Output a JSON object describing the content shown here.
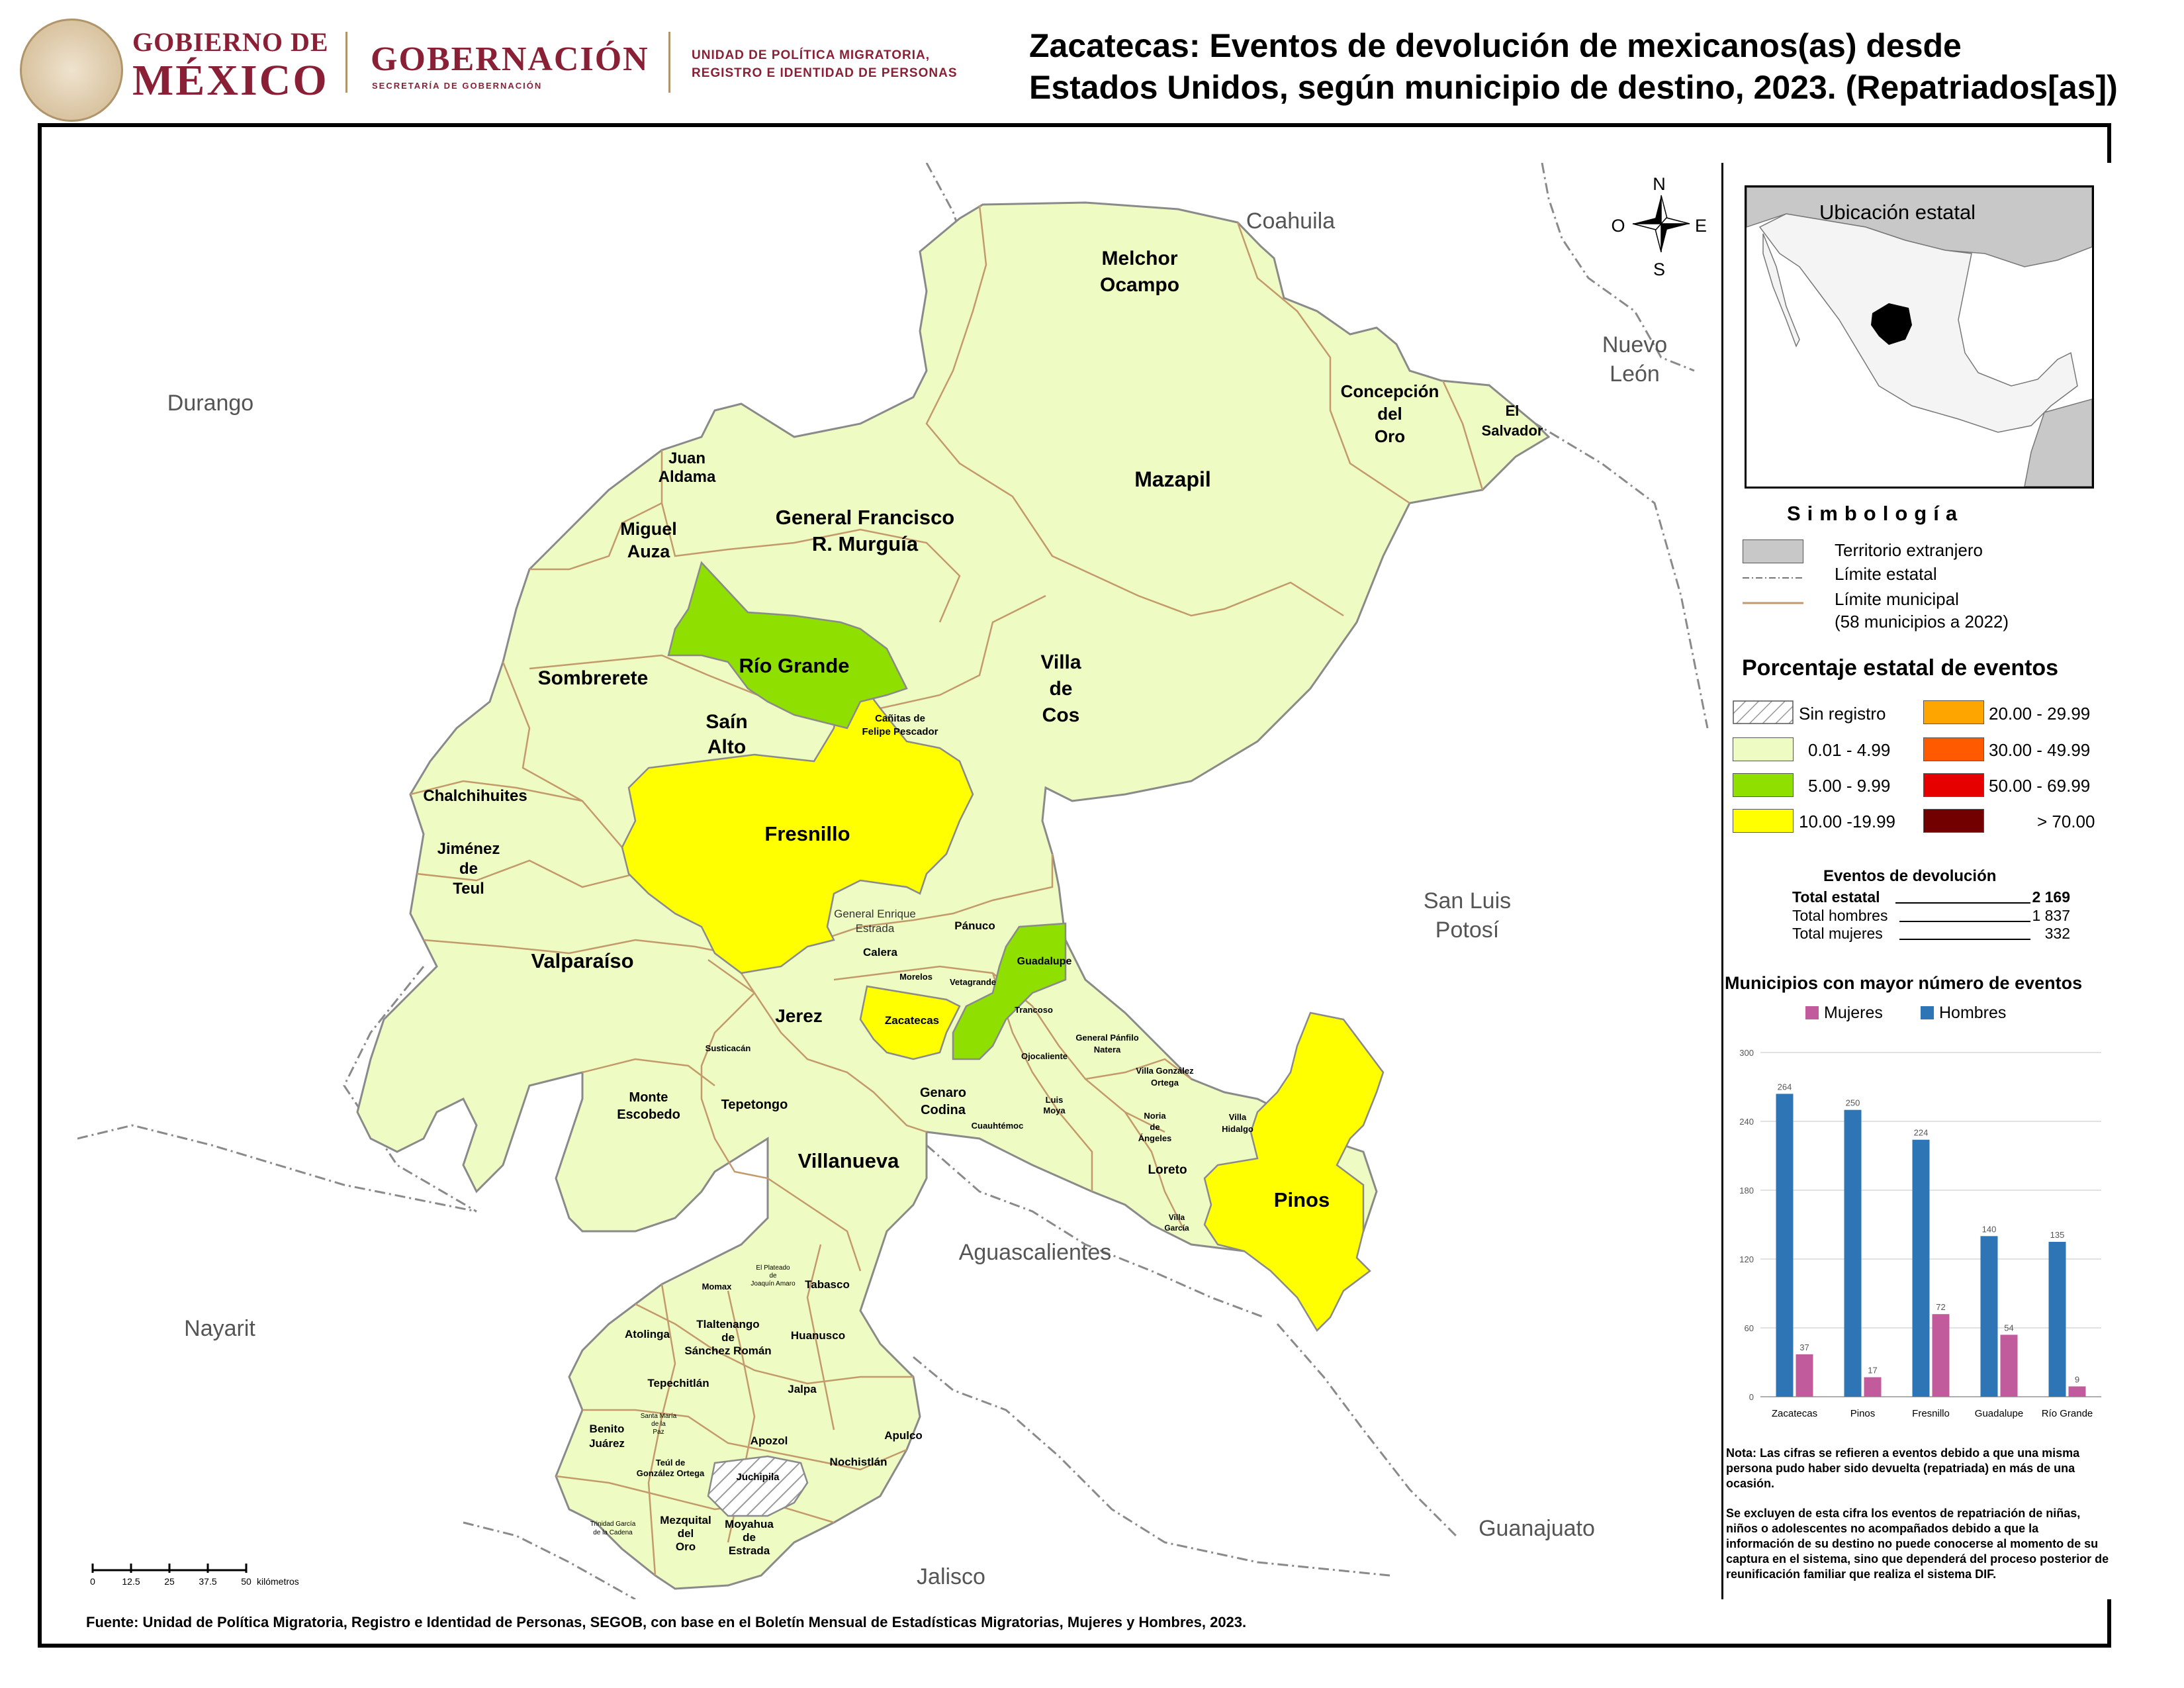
{
  "header": {
    "gob_line1": "GOBIERNO DE",
    "gob_line2": "MÉXICO",
    "gobernacion": "GOBERNACIÓN",
    "secretaria": "SECRETARÍA DE GOBERNACIÓN",
    "unidad_line1": "UNIDAD DE POLÍTICA MIGRATORIA,",
    "unidad_line2": "REGISTRO E IDENTIDAD DE PERSONAS",
    "title_line1": "Zacatecas: Eventos de devolución de mexicanos(as) desde",
    "title_line2": "Estados Unidos, según municipio de destino, 2023. (Repatriados[as])"
  },
  "compass": {
    "n": "N",
    "s": "S",
    "e": "E",
    "o": "O"
  },
  "states": {
    "coahuila": "Coahuila",
    "durango": "Durango",
    "nuevo_leon_1": "Nuevo",
    "nuevo_leon_2": "León",
    "san_luis_1": "San Luis",
    "san_luis_2": "Potosí",
    "nayarit": "Nayarit",
    "aguascalientes": "Aguascalientes",
    "jalisco": "Jalisco",
    "guanajuato": "Guanajuato"
  },
  "municipios": {
    "melchor_1": "Melchor",
    "melchor_2": "Ocampo",
    "concepcion_1": "Concepción",
    "concepcion_2": "del",
    "concepcion_3": "Oro",
    "el_salvador_1": "El",
    "el_salvador_2": "Salvador",
    "mazapil": "Mazapil",
    "juan_aldama_1": "Juan",
    "juan_aldama_2": "Aldama",
    "miguel_auza_1": "Miguel",
    "miguel_auza_2": "Auza",
    "murguia_1": "General Francisco",
    "murguia_2": "R. Murguía",
    "rio_grande": "Río Grande",
    "sombrerete": "Sombrerete",
    "sain_alto_1": "Saín",
    "sain_alto_2": "Alto",
    "canitas_1": "Cañitas de",
    "canitas_2": "Felipe Pescador",
    "villa_de_cos_1": "Villa",
    "villa_de_cos_2": "de",
    "villa_de_cos_3": "Cos",
    "chalchihuites": "Chalchihuites",
    "jimenez_1": "Jiménez",
    "jimenez_2": "de",
    "jimenez_3": "Teul",
    "fresnillo": "Fresnillo",
    "valparaiso": "Valparaíso",
    "enrique_estrada_1": "General Enrique",
    "enrique_estrada_2": "Estrada",
    "panuco": "Pánuco",
    "calera": "Calera",
    "guadalupe": "Guadalupe",
    "morelos": "Morelos",
    "vetagrande": "Vetagrande",
    "zacatecas": "Zacatecas",
    "trancoso": "Trancoso",
    "jerez": "Jerez",
    "susticacan": "Susticacán",
    "panfilo_1": "General Pánfilo",
    "panfilo_2": "Natera",
    "ojocaliente": "Ojocaliente",
    "villa_gonzalez_1": "Villa González",
    "villa_gonzalez_2": "Ortega",
    "monte_escobedo_1": "Monte",
    "monte_escobedo_2": "Escobedo",
    "tepetongo": "Tepetongo",
    "genaro_codina_1": "Genaro",
    "genaro_codina_2": "Codina",
    "luis_moya_1": "Luis",
    "luis_moya_2": "Moya",
    "noria_1": "Noria",
    "noria_2": "de",
    "noria_3": "Ángeles",
    "villa_hidalgo_1": "Villa",
    "villa_hidalgo_2": "Hidalgo",
    "cuauhtemoc": "Cuauhtémoc",
    "villanueva": "Villanueva",
    "loreto": "Loreto",
    "pinos": "Pinos",
    "villa_garcia_1": "Villa",
    "villa_garcia_2": "García",
    "el_plateado_1": "El Plateado",
    "el_plateado_2": "de",
    "el_plateado_3": "Joaquín Amaro",
    "momax": "Momax",
    "tabasco": "Tabasco",
    "atolinga": "Atolinga",
    "tlaltenango_1": "Tlaltenango",
    "tlaltenango_2": "de",
    "tlaltenango_3": "Sánchez Román",
    "huanusco": "Huanusco",
    "tepechitlan": "Tepechitlán",
    "jalpa": "Jalpa",
    "benito_juarez_1": "Benito",
    "benito_juarez_2": "Juárez",
    "santa_maria_1": "Santa María",
    "santa_maria_2": "de la",
    "santa_maria_3": "Paz",
    "teul_1": "Teúl de",
    "teul_2": "González Ortega",
    "apozol": "Apozol",
    "apulco": "Apulco",
    "nochistlan": "Nochistlán",
    "juchipila": "Juchipila",
    "trinidad_1": "Trinidad García",
    "trinidad_2": "de la Cadena",
    "mezquital_1": "Mezquital",
    "mezquital_2": "del",
    "mezquital_3": "Oro",
    "moyahua_1": "Moyahua",
    "moyahua_2": "de",
    "moyahua_3": "Estrada"
  },
  "scale": {
    "ticks": [
      "0",
      "12.5",
      "25",
      "37.5",
      "50"
    ],
    "unit": "kilómetros"
  },
  "inset": {
    "title": "Ubicación estatal"
  },
  "legend": {
    "title": "Simbología",
    "territorio": "Territorio extranjero",
    "limite_estatal": "Límite estatal",
    "limite_municipal": "Límite municipal",
    "municipios_note": "(58 municipios a 2022)",
    "pct_title": "Porcentaje estatal de eventos",
    "classes": [
      {
        "label": "Sin registro",
        "color": "hatch"
      },
      {
        "label": "0.01  - 4.99",
        "color": "#eefbc2"
      },
      {
        "label": "5.00  - 9.99",
        "color": "#8fe000"
      },
      {
        "label": "10.00 -19.99",
        "color": "#ffff00"
      },
      {
        "label": "20.00 - 29.99",
        "color": "#ffa500"
      },
      {
        "label": "30.00 - 49.99",
        "color": "#ff5a00"
      },
      {
        "label": "50.00 - 69.99",
        "color": "#e60000"
      },
      {
        "label": "> 70.00",
        "color": "#730000"
      }
    ]
  },
  "eventos": {
    "title": "Eventos de devolución",
    "total_estatal_label": "Total estatal",
    "total_estatal": "2 169",
    "total_hombres_label": "Total hombres",
    "total_hombres": "1 837",
    "total_mujeres_label": "Total mujeres",
    "total_mujeres": "332"
  },
  "chart_data": {
    "type": "bar",
    "title": "Municipios con mayor número de eventos",
    "categories": [
      "Zacatecas",
      "Pinos",
      "Fresnillo",
      "Guadalupe",
      "Río Grande"
    ],
    "series": [
      {
        "name": "Hombres",
        "color": "#2e75b6",
        "values": [
          264,
          250,
          224,
          140,
          135
        ]
      },
      {
        "name": "Mujeres",
        "color": "#c25b9c",
        "values": [
          37,
          17,
          72,
          54,
          9
        ]
      }
    ],
    "yticks": [
      "0",
      "60",
      "120",
      "180",
      "240",
      "300"
    ],
    "ylim": [
      0,
      300
    ],
    "legend": "top"
  },
  "notes": {
    "n1": "Nota: Las cifras se refieren a eventos debido a que una misma persona pudo haber sido devuelta (repatriada) en más de una ocasión.",
    "n2": "Se excluyen de esta cifra los eventos de repatriación de niñas, niños o adolescentes no acompañados debido a que la información de su destino no puede conocerse al momento de su captura en el sistema, sino que dependerá del proceso posterior de reunificación familiar que realiza el sistema DIF."
  },
  "source": "Fuente: Unidad de Política Migratoria, Registro e Identidad de Personas, SEGOB, con base en el Boletín Mensual de Estadísticas Migratorias, Mujeres y Hombres, 2023."
}
